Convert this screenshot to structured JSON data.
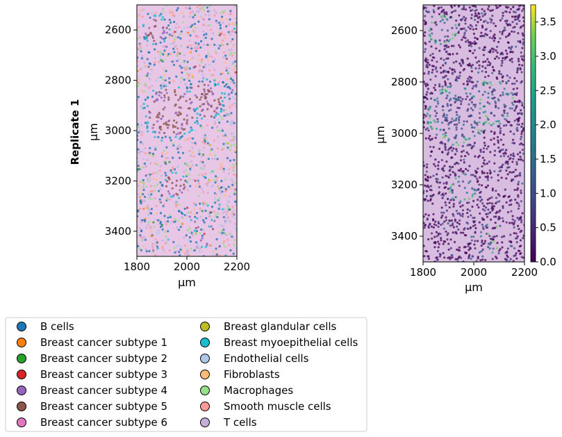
{
  "chart_data": [
    {
      "type": "scatter",
      "panel": "left",
      "row_label": "Replicate 1",
      "xlabel": "µm",
      "ylabel": "µm",
      "xlim": [
        1800,
        2200
      ],
      "ylim": [
        3500,
        2500
      ],
      "xticks": [
        1800,
        2000,
        2200
      ],
      "yticks": [
        2600,
        2800,
        3000,
        3200,
        3400
      ],
      "background": "H&E tissue image",
      "color_by": "cell type",
      "legend_placement": "below"
    },
    {
      "type": "scatter",
      "panel": "right",
      "xlabel": "µm",
      "ylabel": "µm",
      "xlim": [
        1800,
        2200
      ],
      "ylim": [
        3500,
        2500
      ],
      "xticks": [
        1800,
        2000,
        2200
      ],
      "yticks": [
        2600,
        2800,
        3000,
        3200,
        3400
      ],
      "background": "H&E tissue image",
      "colormap": "viridis",
      "colorbar_range": [
        0.0,
        3.75
      ],
      "colorbar_ticks": [
        "0.0",
        "0.5",
        "1.0",
        "1.5",
        "2.0",
        "2.5",
        "3.0",
        "3.5"
      ]
    }
  ],
  "legend": {
    "entries": [
      {
        "label": "B cells",
        "color": "#1f77b4"
      },
      {
        "label": "Breast cancer subtype 1",
        "color": "#ff7f0e"
      },
      {
        "label": "Breast cancer subtype 2",
        "color": "#2ca02c"
      },
      {
        "label": "Breast cancer subtype 3",
        "color": "#d62728"
      },
      {
        "label": "Breast cancer subtype 4",
        "color": "#9467bd"
      },
      {
        "label": "Breast cancer subtype 5",
        "color": "#8c564b"
      },
      {
        "label": "Breast cancer subtype 6",
        "color": "#e377c2"
      },
      {
        "label": "Breast glandular cells",
        "color": "#bcbd22"
      },
      {
        "label": "Breast myoepithelial cells",
        "color": "#17becf"
      },
      {
        "label": "Endothelial cells",
        "color": "#aec7e8"
      },
      {
        "label": "Fibroblasts",
        "color": "#ffbb78"
      },
      {
        "label": "Macrophages",
        "color": "#98df8a"
      },
      {
        "label": "Smooth muscle cells",
        "color": "#ff9896"
      },
      {
        "label": "T cells",
        "color": "#c5b0d5"
      }
    ]
  }
}
